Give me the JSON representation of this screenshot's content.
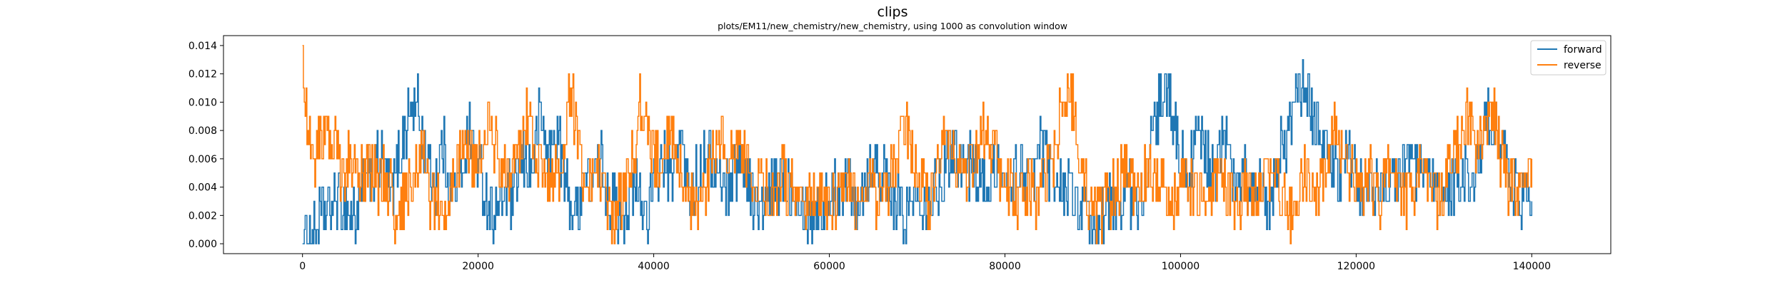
{
  "chart_data": {
    "type": "line",
    "title": "clips",
    "subtitle": "plots/EM11/new_chemistry/new_chemistry, using 1000 as convolution window",
    "xlabel": "",
    "ylabel": "",
    "xlim": [
      -9000,
      149000
    ],
    "ylim": [
      -0.0007,
      0.0147
    ],
    "xticks": [
      0,
      20000,
      40000,
      60000,
      80000,
      100000,
      120000,
      140000
    ],
    "yticks": [
      0.0,
      0.002,
      0.004,
      0.006,
      0.008,
      0.01,
      0.012,
      0.014
    ],
    "xtick_labels": [
      "0",
      "20000",
      "40000",
      "60000",
      "80000",
      "100000",
      "120000",
      "140000"
    ],
    "ytick_labels": [
      "0.000",
      "0.002",
      "0.004",
      "0.006",
      "0.008",
      "0.010",
      "0.012",
      "0.014"
    ],
    "grid": false,
    "legend_position": "top-right",
    "x_range": [
      0,
      140000
    ],
    "series": [
      {
        "name": "forward",
        "color": "#1f77b4",
        "points": [
          [
            0,
            0.0
          ],
          [
            1000,
            0.001
          ],
          [
            4000,
            0.003
          ],
          [
            6000,
            0.002
          ],
          [
            7000,
            0.004
          ],
          [
            9000,
            0.006
          ],
          [
            10000,
            0.003
          ],
          [
            12000,
            0.009
          ],
          [
            13000,
            0.01
          ],
          [
            14000,
            0.006
          ],
          [
            15000,
            0.004
          ],
          [
            16000,
            0.007
          ],
          [
            17000,
            0.003
          ],
          [
            18000,
            0.005
          ],
          [
            19000,
            0.008
          ],
          [
            21000,
            0.003
          ],
          [
            22000,
            0.002
          ],
          [
            23000,
            0.004
          ],
          [
            24000,
            0.003
          ],
          [
            25000,
            0.006
          ],
          [
            26000,
            0.005
          ],
          [
            27000,
            0.009
          ],
          [
            28000,
            0.006
          ],
          [
            29000,
            0.008
          ],
          [
            30000,
            0.004
          ],
          [
            31000,
            0.002
          ],
          [
            32000,
            0.005
          ],
          [
            33000,
            0.004
          ],
          [
            34000,
            0.006
          ],
          [
            35000,
            0.003
          ],
          [
            36000,
            0.002
          ],
          [
            38000,
            0.004
          ],
          [
            39000,
            0.002
          ],
          [
            41000,
            0.006
          ],
          [
            42000,
            0.004
          ],
          [
            43000,
            0.008
          ],
          [
            44000,
            0.003
          ],
          [
            46000,
            0.007
          ],
          [
            47000,
            0.005
          ],
          [
            48000,
            0.004
          ],
          [
            50000,
            0.006
          ],
          [
            51000,
            0.004
          ],
          [
            52000,
            0.002
          ],
          [
            53000,
            0.003
          ],
          [
            55000,
            0.005
          ],
          [
            56000,
            0.004
          ],
          [
            57000,
            0.003
          ],
          [
            58000,
            0.002
          ],
          [
            60000,
            0.003
          ],
          [
            62000,
            0.005
          ],
          [
            63000,
            0.003
          ],
          [
            65000,
            0.006
          ],
          [
            66000,
            0.005
          ],
          [
            67000,
            0.003
          ],
          [
            69000,
            0.002
          ],
          [
            70000,
            0.004
          ],
          [
            71000,
            0.003
          ],
          [
            73000,
            0.005
          ],
          [
            74000,
            0.007
          ],
          [
            75000,
            0.006
          ],
          [
            77000,
            0.005
          ],
          [
            78000,
            0.004
          ],
          [
            79000,
            0.006
          ],
          [
            80000,
            0.003
          ],
          [
            82000,
            0.006
          ],
          [
            83000,
            0.004
          ],
          [
            84000,
            0.007
          ],
          [
            85000,
            0.005
          ],
          [
            87000,
            0.004
          ],
          [
            88000,
            0.003
          ],
          [
            89000,
            0.002
          ],
          [
            90000,
            0.0
          ],
          [
            91000,
            0.002
          ],
          [
            93000,
            0.003
          ],
          [
            94000,
            0.004
          ],
          [
            95000,
            0.002
          ],
          [
            96000,
            0.005
          ],
          [
            97000,
            0.008
          ],
          [
            98000,
            0.011
          ],
          [
            99000,
            0.009
          ],
          [
            100000,
            0.006
          ],
          [
            101000,
            0.005
          ],
          [
            102000,
            0.008
          ],
          [
            103000,
            0.006
          ],
          [
            104000,
            0.005
          ],
          [
            105000,
            0.008
          ],
          [
            106000,
            0.004
          ],
          [
            107000,
            0.006
          ],
          [
            108000,
            0.003
          ],
          [
            109000,
            0.005
          ],
          [
            110000,
            0.003
          ],
          [
            111000,
            0.006
          ],
          [
            112000,
            0.007
          ],
          [
            113000,
            0.01
          ],
          [
            114000,
            0.011
          ],
          [
            115000,
            0.009
          ],
          [
            116000,
            0.008
          ],
          [
            117000,
            0.006
          ],
          [
            118000,
            0.004
          ],
          [
            119000,
            0.007
          ],
          [
            120000,
            0.004
          ],
          [
            122000,
            0.003
          ],
          [
            123000,
            0.005
          ],
          [
            124000,
            0.004
          ],
          [
            126000,
            0.006
          ],
          [
            128000,
            0.004
          ],
          [
            130000,
            0.003
          ],
          [
            132000,
            0.005
          ],
          [
            133000,
            0.004
          ],
          [
            134000,
            0.006
          ],
          [
            135000,
            0.009
          ],
          [
            136000,
            0.008
          ],
          [
            137000,
            0.006
          ],
          [
            138000,
            0.004
          ],
          [
            139000,
            0.003
          ],
          [
            140000,
            0.003
          ]
        ],
        "amplitude": 0.0022
      },
      {
        "name": "reverse",
        "color": "#ff7f0e",
        "points": [
          [
            0,
            0.014
          ],
          [
            500,
            0.008
          ],
          [
            1500,
            0.006
          ],
          [
            2500,
            0.008
          ],
          [
            3500,
            0.007
          ],
          [
            4500,
            0.005
          ],
          [
            5500,
            0.006
          ],
          [
            6500,
            0.004
          ],
          [
            7500,
            0.006
          ],
          [
            8500,
            0.004
          ],
          [
            9500,
            0.005
          ],
          [
            10500,
            0.002
          ],
          [
            11500,
            0.003
          ],
          [
            12500,
            0.004
          ],
          [
            13500,
            0.007
          ],
          [
            14500,
            0.003
          ],
          [
            15500,
            0.003
          ],
          [
            16500,
            0.002
          ],
          [
            17500,
            0.005
          ],
          [
            18500,
            0.008
          ],
          [
            19500,
            0.005
          ],
          [
            20500,
            0.007
          ],
          [
            21500,
            0.008
          ],
          [
            22500,
            0.005
          ],
          [
            23500,
            0.004
          ],
          [
            24500,
            0.006
          ],
          [
            25500,
            0.009
          ],
          [
            26500,
            0.006
          ],
          [
            27500,
            0.005
          ],
          [
            28500,
            0.004
          ],
          [
            29500,
            0.006
          ],
          [
            30500,
            0.011
          ],
          [
            31500,
            0.006
          ],
          [
            32500,
            0.004
          ],
          [
            33500,
            0.006
          ],
          [
            34500,
            0.003
          ],
          [
            35500,
            0.002
          ],
          [
            36500,
            0.004
          ],
          [
            37500,
            0.006
          ],
          [
            38500,
            0.01
          ],
          [
            39500,
            0.007
          ],
          [
            40500,
            0.006
          ],
          [
            41500,
            0.008
          ],
          [
            42500,
            0.007
          ],
          [
            43500,
            0.004
          ],
          [
            44500,
            0.002
          ],
          [
            45500,
            0.003
          ],
          [
            46500,
            0.006
          ],
          [
            47500,
            0.008
          ],
          [
            48500,
            0.006
          ],
          [
            49500,
            0.007
          ],
          [
            50500,
            0.006
          ],
          [
            51500,
            0.005
          ],
          [
            52500,
            0.004
          ],
          [
            53500,
            0.003
          ],
          [
            54500,
            0.005
          ],
          [
            55500,
            0.004
          ],
          [
            56500,
            0.003
          ],
          [
            57500,
            0.003
          ],
          [
            58500,
            0.004
          ],
          [
            59500,
            0.003
          ],
          [
            60500,
            0.003
          ],
          [
            61500,
            0.005
          ],
          [
            62500,
            0.004
          ],
          [
            63500,
            0.002
          ],
          [
            64500,
            0.004
          ],
          [
            65500,
            0.003
          ],
          [
            66500,
            0.004
          ],
          [
            67500,
            0.006
          ],
          [
            68500,
            0.009
          ],
          [
            69500,
            0.006
          ],
          [
            70500,
            0.005
          ],
          [
            71500,
            0.003
          ],
          [
            72500,
            0.007
          ],
          [
            73500,
            0.008
          ],
          [
            74500,
            0.006
          ],
          [
            75500,
            0.004
          ],
          [
            76500,
            0.006
          ],
          [
            77500,
            0.008
          ],
          [
            78500,
            0.007
          ],
          [
            79500,
            0.005
          ],
          [
            80500,
            0.004
          ],
          [
            81500,
            0.003
          ],
          [
            82500,
            0.004
          ],
          [
            83500,
            0.003
          ],
          [
            84500,
            0.005
          ],
          [
            85500,
            0.006
          ],
          [
            86500,
            0.01
          ],
          [
            87500,
            0.011
          ],
          [
            88500,
            0.006
          ],
          [
            89500,
            0.003
          ],
          [
            90500,
            0.002
          ],
          [
            91500,
            0.003
          ],
          [
            92500,
            0.004
          ],
          [
            93500,
            0.005
          ],
          [
            94500,
            0.004
          ],
          [
            95500,
            0.004
          ],
          [
            96500,
            0.006
          ],
          [
            97500,
            0.004
          ],
          [
            98500,
            0.003
          ],
          [
            99500,
            0.003
          ],
          [
            100500,
            0.005
          ],
          [
            101500,
            0.004
          ],
          [
            102500,
            0.003
          ],
          [
            103500,
            0.004
          ],
          [
            104500,
            0.005
          ],
          [
            105500,
            0.003
          ],
          [
            106500,
            0.003
          ],
          [
            107500,
            0.004
          ],
          [
            108500,
            0.003
          ],
          [
            109500,
            0.005
          ],
          [
            110500,
            0.004
          ],
          [
            111500,
            0.004
          ],
          [
            112500,
            0.002
          ],
          [
            113500,
            0.004
          ],
          [
            114500,
            0.005
          ],
          [
            115500,
            0.003
          ],
          [
            116500,
            0.006
          ],
          [
            117500,
            0.008
          ],
          [
            118500,
            0.006
          ],
          [
            119500,
            0.005
          ],
          [
            120500,
            0.004
          ],
          [
            121500,
            0.005
          ],
          [
            122500,
            0.003
          ],
          [
            123500,
            0.006
          ],
          [
            124500,
            0.004
          ],
          [
            125500,
            0.003
          ],
          [
            126500,
            0.004
          ],
          [
            127500,
            0.005
          ],
          [
            128500,
            0.004
          ],
          [
            129500,
            0.003
          ],
          [
            130500,
            0.005
          ],
          [
            131500,
            0.007
          ],
          [
            132500,
            0.009
          ],
          [
            133500,
            0.007
          ],
          [
            134500,
            0.008
          ],
          [
            135500,
            0.01
          ],
          [
            136500,
            0.006
          ],
          [
            137500,
            0.004
          ],
          [
            138500,
            0.003
          ],
          [
            139500,
            0.004
          ],
          [
            140000,
            0.006
          ]
        ],
        "amplitude": 0.0022
      }
    ]
  }
}
